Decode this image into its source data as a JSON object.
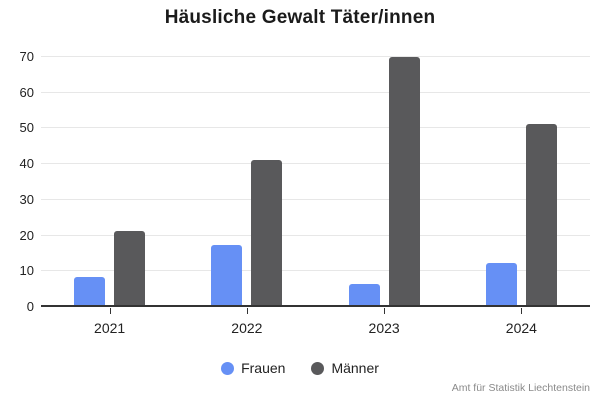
{
  "title": "Häusliche Gewalt Täter/innen",
  "footer": "Amt für Statistik Liechtenstein",
  "chart_data": {
    "type": "bar",
    "title": "Häusliche Gewalt Täter/innen",
    "categories": [
      "2021",
      "2022",
      "2023",
      "2024"
    ],
    "series": [
      {
        "name": "Frauen",
        "key": "frauen",
        "color": "#6690F5",
        "values": [
          8,
          17,
          6,
          12
        ]
      },
      {
        "name": "Männer",
        "key": "maenner",
        "color": "#59595B",
        "values": [
          21,
          41,
          70,
          51
        ]
      }
    ],
    "xlabel": "",
    "ylabel": "",
    "ylim": [
      0,
      70
    ],
    "yticks": [
      0,
      10,
      20,
      30,
      40,
      50,
      60,
      70
    ],
    "grid": true,
    "legend_position": "bottom",
    "source_note": "Amt für Statistik Liechtenstein"
  },
  "colors": {
    "background": "#ffffff",
    "gridline": "#e7e7e7",
    "axis_line": "#333333",
    "title_text": "#1b1b1b",
    "tick_text": "#222222",
    "footer_text": "#8a8a8a"
  }
}
